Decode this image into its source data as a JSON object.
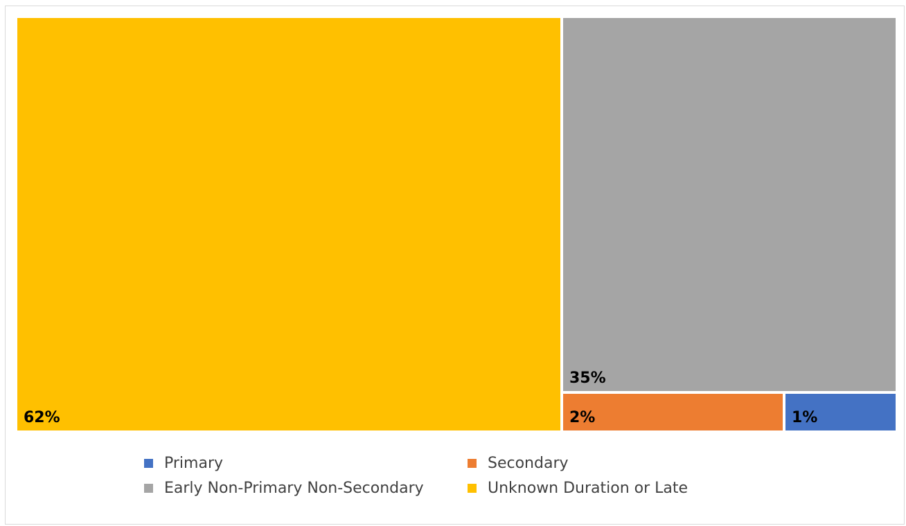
{
  "chart_data": {
    "type": "treemap",
    "title": "",
    "series": [
      {
        "name": "Unknown Duration or Late",
        "value": 62,
        "label": "62%",
        "color": "#FFC000"
      },
      {
        "name": "Early Non-Primary Non-Secondary",
        "value": 35,
        "label": "35%",
        "color": "#A5A5A5"
      },
      {
        "name": "Secondary",
        "value": 2,
        "label": "2%",
        "color": "#ED7D31"
      },
      {
        "name": "Primary",
        "value": 1,
        "label": "1%",
        "color": "#4472C4"
      }
    ],
    "legend": {
      "position": "bottom",
      "items": [
        {
          "label": "Primary",
          "color": "#4472C4"
        },
        {
          "label": "Secondary",
          "color": "#ED7D31"
        },
        {
          "label": "Early Non-Primary Non-Secondary",
          "color": "#A5A5A5"
        },
        {
          "label": "Unknown Duration or Late",
          "color": "#FFC000"
        }
      ]
    }
  }
}
